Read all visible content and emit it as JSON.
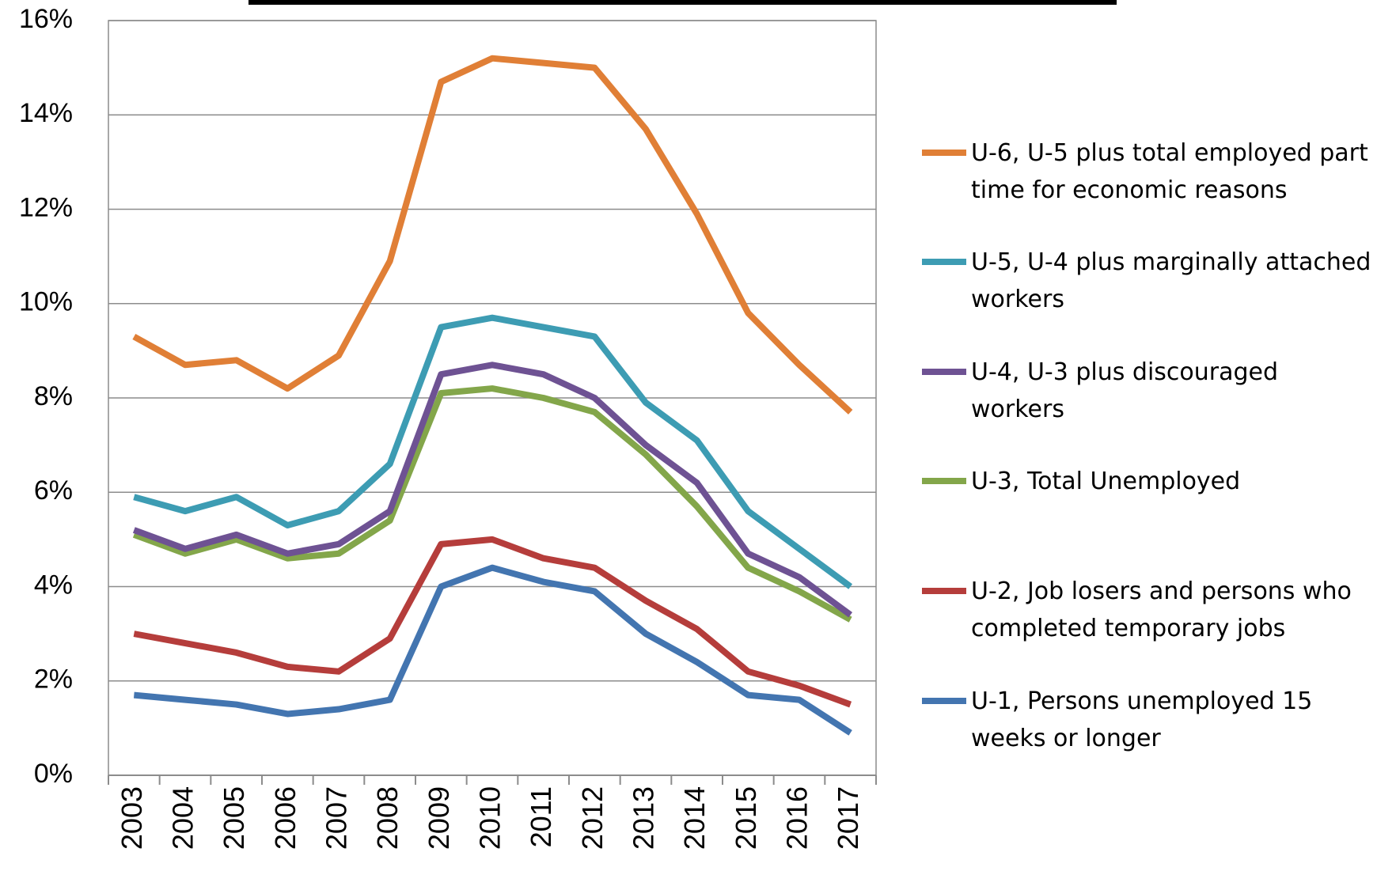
{
  "chart_data": {
    "type": "line",
    "categories": [
      "2003",
      "2004",
      "2005",
      "2006",
      "2007",
      "2008",
      "2009",
      "2010",
      "2011",
      "2012",
      "2013",
      "2014",
      "2015",
      "2016",
      "2017"
    ],
    "series": [
      {
        "name": "U-6, U-5 plus total employed part time for economic reasons",
        "color": "#e07f36",
        "values": [
          9.3,
          8.7,
          8.8,
          8.2,
          8.9,
          10.9,
          14.7,
          15.2,
          15.1,
          15.0,
          13.7,
          11.9,
          9.8,
          8.7,
          7.7
        ]
      },
      {
        "name": "U-5, U-4 plus marginally attached workers",
        "color": "#3d9cb3",
        "values": [
          5.9,
          5.6,
          5.9,
          5.3,
          5.6,
          6.6,
          9.5,
          9.7,
          9.5,
          9.3,
          7.9,
          7.1,
          5.6,
          4.8,
          4.0
        ]
      },
      {
        "name": "U-4, U-3 plus discouraged workers",
        "color": "#6e5293",
        "values": [
          5.2,
          4.8,
          5.1,
          4.7,
          4.9,
          5.6,
          8.5,
          8.7,
          8.5,
          8.0,
          7.0,
          6.2,
          4.7,
          4.2,
          3.4
        ]
      },
      {
        "name": "U-3, Total Unemployed",
        "color": "#83a64a",
        "values": [
          5.1,
          4.7,
          5.0,
          4.6,
          4.7,
          5.4,
          8.1,
          8.2,
          8.0,
          7.7,
          6.8,
          5.7,
          4.4,
          3.9,
          3.3
        ]
      },
      {
        "name": "U-2, Job losers and persons who completed temporary jobs",
        "color": "#b53d3b",
        "values": [
          3.0,
          2.8,
          2.6,
          2.3,
          2.2,
          2.9,
          4.9,
          5.0,
          4.6,
          4.4,
          3.7,
          3.1,
          2.2,
          1.9,
          1.5
        ]
      },
      {
        "name": "U-1, Persons unemployed 15 weeks or longer",
        "color": "#4375b0",
        "values": [
          1.7,
          1.6,
          1.5,
          1.3,
          1.4,
          1.6,
          4.0,
          4.4,
          4.1,
          3.9,
          3.0,
          2.4,
          1.7,
          1.6,
          0.9
        ]
      }
    ],
    "ylim": [
      0,
      16
    ],
    "yticks": [
      {
        "value": 0,
        "label": "0%"
      },
      {
        "value": 2,
        "label": "2%"
      },
      {
        "value": 4,
        "label": "4%"
      },
      {
        "value": 6,
        "label": "6%"
      },
      {
        "value": 8,
        "label": "8%"
      },
      {
        "value": 10,
        "label": "10%"
      },
      {
        "value": 12,
        "label": "12%"
      },
      {
        "value": 14,
        "label": "14%"
      },
      {
        "value": 16,
        "label": "16%"
      }
    ],
    "grid": true,
    "legend": "right"
  }
}
